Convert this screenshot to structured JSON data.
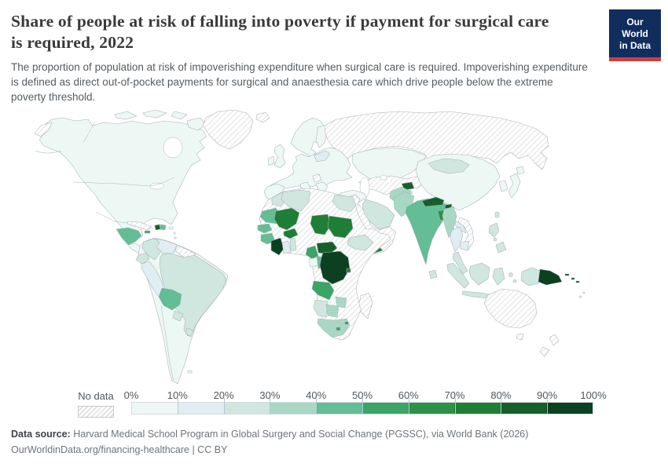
{
  "header": {
    "title": "Share of people at risk of falling into poverty if payment for surgical care\nis required, 2022",
    "subtitle": "The proportion of population at risk of impoverishing expenditure when surgical care is required. Impoverishing expenditure\nis defined as direct out-of-pocket payments for surgical and anaesthesia care which drive people below the extreme\npoverty threshold.",
    "logo_line1": "Our World",
    "logo_line2": "in Data",
    "logo_bg": "#102d5e",
    "logo_accent": "#cf3d3e"
  },
  "footer": {
    "source_label": "Data source:",
    "source_text": "Harvard Medical School Program in Global Surgery and Social Change (PGSSC), via World Bank (2026)",
    "url_line": "OurWorldinData.org/financing-healthcare | CC BY"
  },
  "chart_data": {
    "type": "choropleth_map",
    "title": "Share of people at risk of falling into poverty if payment for surgical care is required, 2022",
    "unit": "%",
    "legend": {
      "no_data_label": "No data",
      "position": "bottom",
      "ticks": [
        "0%",
        "10%",
        "20%",
        "30%",
        "40%",
        "50%",
        "60%",
        "70%",
        "80%",
        "90%",
        "100%"
      ],
      "bin_ranges": [
        "0-10%",
        "10-20%",
        "20-30%",
        "30-40%",
        "40-50%",
        "50-60%",
        "60-70%",
        "70-80%",
        "80-90%",
        "90-100%"
      ],
      "bin_colors": [
        "#edf8f5",
        "#e0eef3",
        "#cfe7df",
        "#a8d8c4",
        "#63bd95",
        "#3aa566",
        "#2e9148",
        "#1e7e35",
        "#15602a",
        "#0b4020"
      ]
    },
    "regions": {
      "north_america": 0,
      "greenland": "no_data",
      "chukotka": "no_data",
      "aleutians": "no_data",
      "central_america": 4,
      "costa_rica_panama": 0,
      "cuba": "no_data",
      "jamaica": 5,
      "haiti": 8,
      "dominican_republic": 4,
      "puerto_rico": "no_data",
      "lesser_antilles": "no_data",
      "south_america": 0,
      "colombia": 2,
      "venezuela": 1,
      "guyanas": "no_data",
      "ecuador": 2,
      "peru": 1,
      "brazil": 2,
      "bolivia": 4,
      "paraguay": 2,
      "uruguay": 2,
      "falkland_islands": "no_data",
      "iceland": "no_data",
      "ireland": 0,
      "united_kingdom": 0,
      "scandinavia": 0,
      "finland": 0,
      "europe": 0,
      "iberia": 0,
      "italy": 0,
      "balkans": 0,
      "balkans_no_data": "no_data",
      "poland_baltics": 1,
      "russia": "no_data",
      "kazakhstan": 0,
      "central_asia": "no_data",
      "turkey": 0,
      "middle_east": "no_data",
      "iran": 2,
      "yemen": 7,
      "afghanistan": 3,
      "tajikistan": 8,
      "pakistan": 3,
      "india": 4,
      "nepal": 8,
      "bhutan": 8,
      "bangladesh": 6,
      "sri_lanka": 2,
      "myanmar": 3,
      "thailand": 1,
      "laos": 1,
      "vietnam": "no_data",
      "cambodia": 1,
      "malaysia": 2,
      "china": 0,
      "mongolia": 2,
      "south_korea": 0,
      "japan": 0,
      "taiwan": 2,
      "philippines": 2,
      "indonesia": 2,
      "new_guinea_west": 2,
      "papua_new_guinea": 9,
      "solomon_islands": 9,
      "fiji": "no_data",
      "australia": "no_data",
      "tasmania": "no_data",
      "new_zealand": "no_data",
      "africa": "no_data",
      "morocco": 2,
      "algeria": 2,
      "egypt": 2,
      "mauritania": 4,
      "senegal": 4,
      "guinea": 4,
      "mali": 7,
      "burkina_faso": 7,
      "cote_divoire": 9,
      "ghana": 1,
      "togo_benin": 2,
      "chad": 7,
      "sudan": 7,
      "ethiopia": 2,
      "cameroon": 5,
      "central_african_republic": 8,
      "gabon": 0,
      "congo": 4,
      "dr_congo": 9,
      "rwanda_burundi": 7,
      "angola": 5,
      "namibia": 2,
      "botswana": 3,
      "zimbabwe": 3,
      "south_africa": 3,
      "lesotho": 5,
      "eswatini": 6,
      "madagascar": "no_data"
    }
  }
}
